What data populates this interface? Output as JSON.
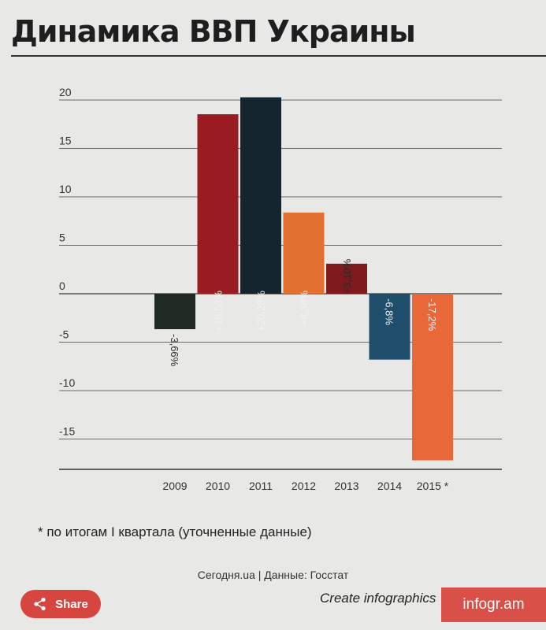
{
  "title": "Динамика ВВП Украины",
  "chart_data": {
    "type": "bar",
    "title": "Динамика ВВП Украины",
    "categories": [
      "2009",
      "2010",
      "2011",
      "2012",
      "2013",
      "2014",
      "2015 *"
    ],
    "values": [
      -3.66,
      18.53,
      20.28,
      8.38,
      3.1,
      -6.8,
      -17.2
    ],
    "data_labels": [
      "-3,66%",
      "+18,53%",
      "+20,28%",
      "+8,38%",
      "+3,10%",
      "-6,8%",
      "-17,2%"
    ],
    "colors": [
      "#1f2a24",
      "#9a1c22",
      "#14252e",
      "#e27030",
      "#7c1a1e",
      "#1f4d6c",
      "#e8683a"
    ],
    "y_ticks": [
      "20",
      "15",
      "10",
      "5",
      "0",
      "-5",
      "-10",
      "-15"
    ],
    "ylim": [
      -18.5,
      20.5
    ],
    "grid": true,
    "xlabel": "",
    "ylabel": ""
  },
  "footnote": "* по итогам I квартала (уточненные данные)",
  "source": "Сегодня.ua | Данные: Госстат",
  "share_label": "Share",
  "create_label": "Create infographics",
  "brand": "infogr.am"
}
